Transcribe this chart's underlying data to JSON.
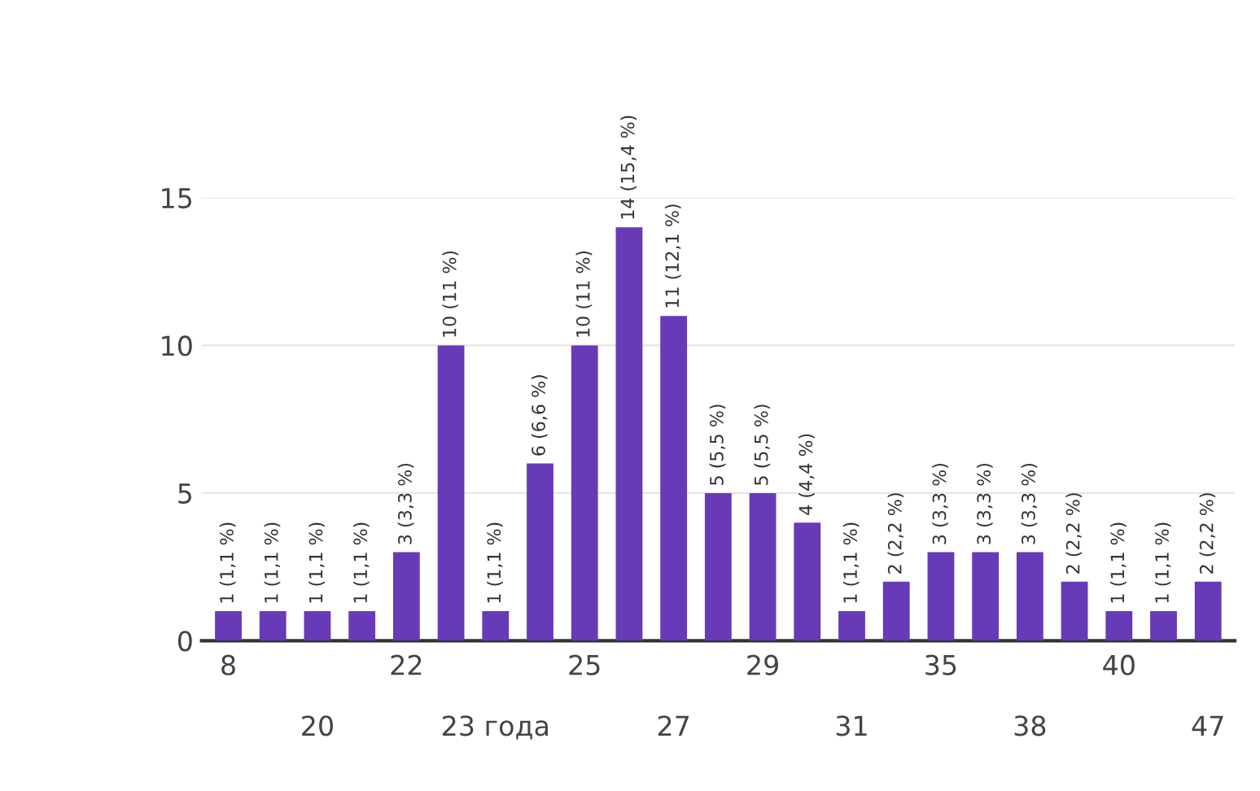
{
  "chart_data": {
    "type": "bar",
    "categories": [
      "8",
      null,
      "20",
      null,
      "22",
      null,
      "23 года",
      null,
      "25",
      null,
      "27",
      null,
      "29",
      null,
      "31",
      null,
      "35",
      null,
      "38",
      null,
      "40",
      null,
      "47"
    ],
    "values": [
      1,
      1,
      1,
      1,
      3,
      10,
      1,
      6,
      10,
      14,
      11,
      5,
      5,
      4,
      1,
      2,
      3,
      3,
      3,
      2,
      1,
      1,
      2
    ],
    "value_labels": [
      "1 (1,1 %)",
      "1 (1,1 %)",
      "1 (1,1 %)",
      "1 (1,1 %)",
      "3 (3,3 %)",
      "10 (11 %)",
      "1 (1,1 %)",
      "6 (6,6 %)",
      "10 (11 %)",
      "14 (15,4 %)",
      "11 (12,1 %)",
      "5 (5,5 %)",
      "5 (5,5 %)",
      "4 (4,4 %)",
      "1 (1,1 %)",
      "2 (2,2 %)",
      "3 (3,3 %)",
      "3 (3,3 %)",
      "3 (3,3 %)",
      "2 (2,2 %)",
      "1 (1,1 %)",
      "1 (1,1 %)",
      "2 (2,2 %)"
    ],
    "color": "#673ab7",
    "ylim": [
      0,
      15
    ],
    "yticks": [
      0,
      5,
      10,
      15
    ],
    "grid": "y"
  }
}
